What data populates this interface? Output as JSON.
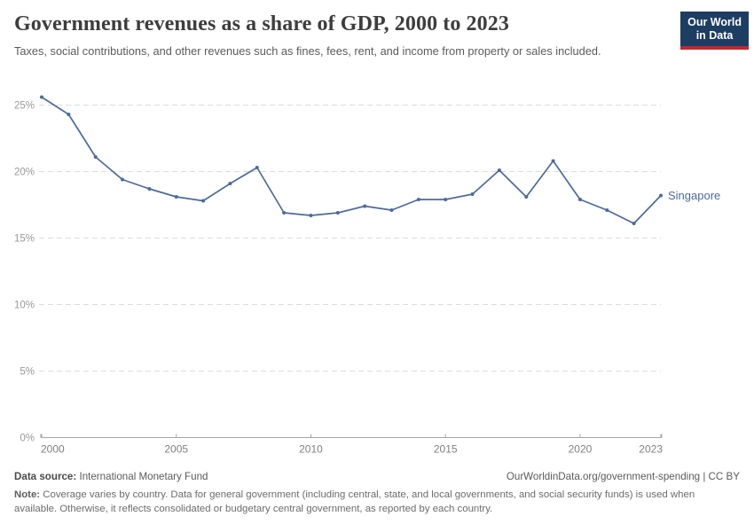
{
  "header": {
    "title": "Government revenues as a share of GDP, 2000 to 2023",
    "subtitle": "Taxes, social contributions, and other revenues such as fines, fees, rent, and income from property or sales included."
  },
  "logo": {
    "line1": "Our World",
    "line2": "in Data"
  },
  "chart_data": {
    "type": "line",
    "title": "Government revenues as a share of GDP, 2000 to 2023",
    "x": [
      2000,
      2001,
      2002,
      2003,
      2004,
      2005,
      2006,
      2007,
      2008,
      2009,
      2010,
      2011,
      2012,
      2013,
      2014,
      2015,
      2016,
      2017,
      2018,
      2019,
      2020,
      2021,
      2022,
      2023
    ],
    "series": [
      {
        "name": "Singapore",
        "color": "#4c6a9c",
        "values": [
          25.6,
          24.3,
          21.1,
          19.4,
          18.7,
          18.1,
          17.8,
          19.1,
          20.3,
          16.9,
          16.7,
          16.9,
          17.4,
          17.1,
          17.9,
          17.9,
          18.3,
          20.1,
          18.1,
          20.8,
          17.9,
          17.1,
          16.1,
          18.2
        ]
      }
    ],
    "xlabel": "",
    "ylabel": "",
    "xlim": [
      2000,
      2023
    ],
    "ylim": [
      0,
      26.5
    ],
    "yticks": [
      0,
      5,
      10,
      15,
      20,
      25
    ],
    "ytick_labels": [
      "0%",
      "5%",
      "10%",
      "15%",
      "20%",
      "25%"
    ],
    "xticks": [
      2000,
      2005,
      2010,
      2015,
      2020,
      2023
    ],
    "grid": "horizontal-dashed",
    "legend_position": "end-of-line-label"
  },
  "footer": {
    "data_source_label": "Data source:",
    "data_source_value": "International Monetary Fund",
    "attribution": "OurWorldinData.org/government-spending | CC BY",
    "note_label": "Note:",
    "note_text": "Coverage varies by country. Data for general government (including central, state, and local governments, and social security funds) is used when available. Otherwise, it reflects consolidated or budgetary central government, as reported by each country."
  },
  "colors": {
    "series": "#4c6a9c",
    "grid": "#dcdcdc",
    "axis": "#a5a5a5",
    "y_tick_label": "#999999",
    "x_tick_label": "#7f7f7f",
    "title": "#3d3d3d",
    "subtitle": "#5b5b5b",
    "footer_text": "#6b6b6b",
    "logo_bg": "#1d3d63",
    "logo_bar": "#c1272d"
  }
}
